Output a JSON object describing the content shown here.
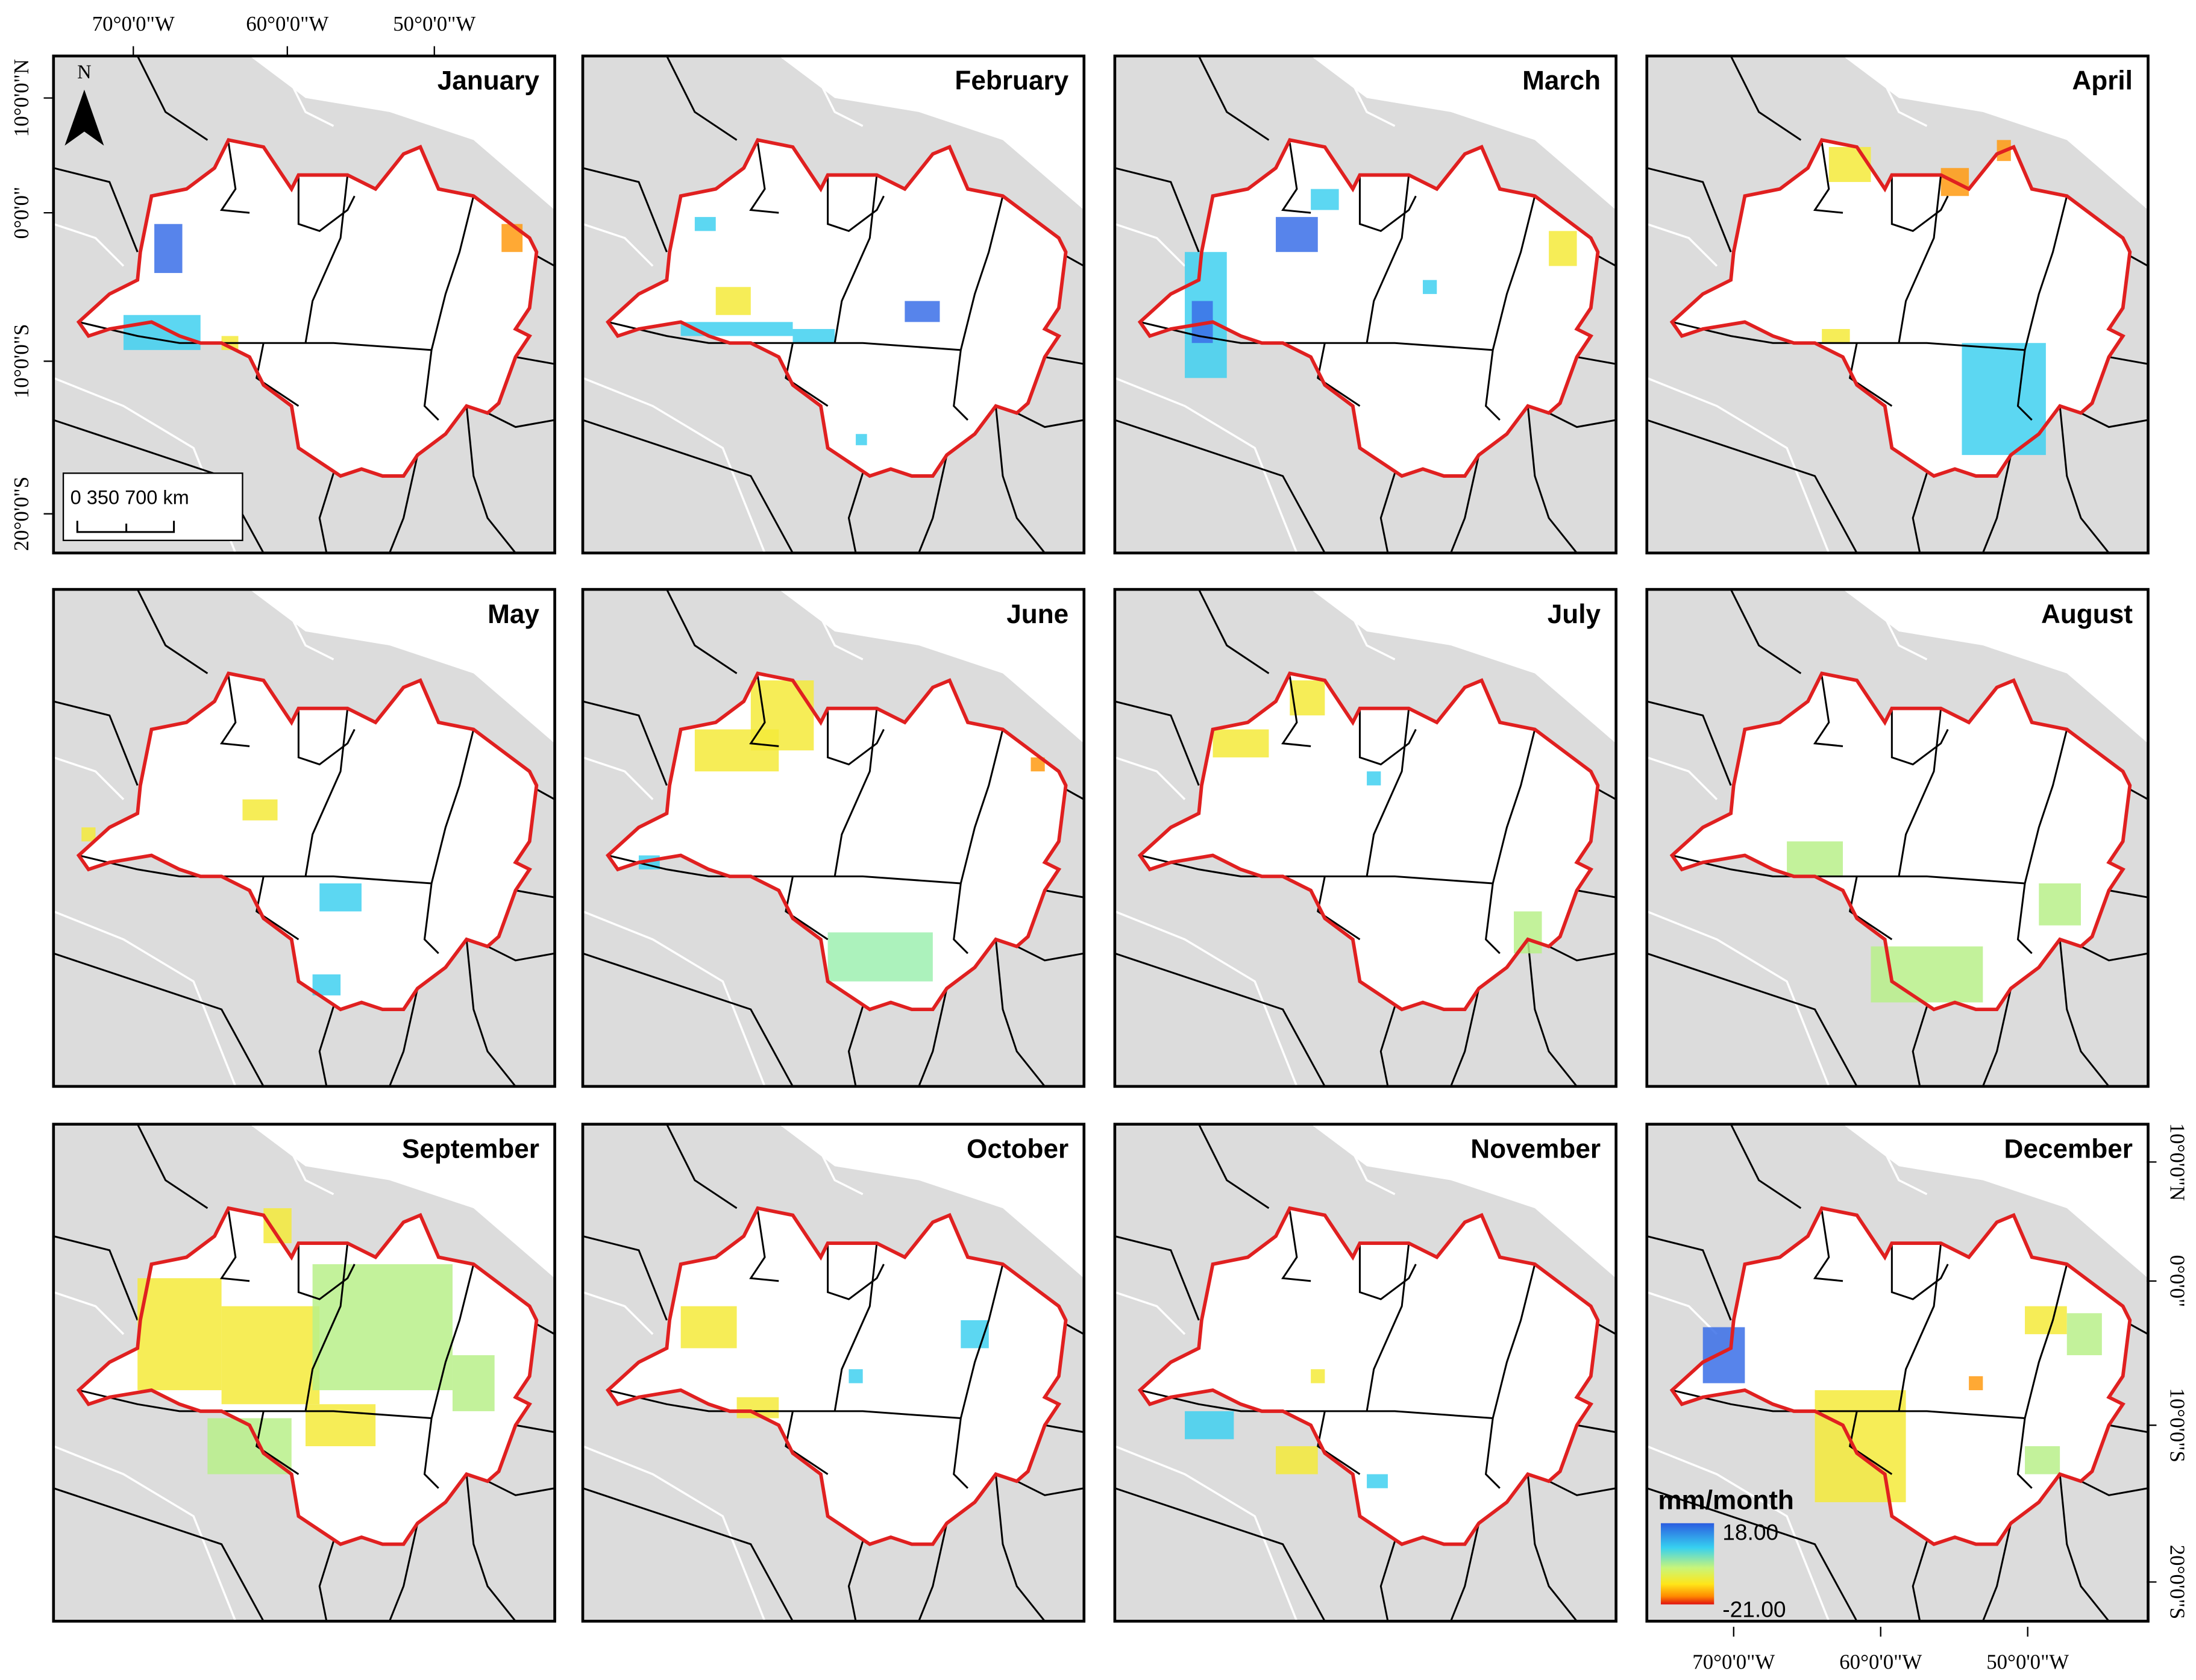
{
  "panels": [
    {
      "title": "January"
    },
    {
      "title": "February"
    },
    {
      "title": "March"
    },
    {
      "title": "April"
    },
    {
      "title": "May"
    },
    {
      "title": "June"
    },
    {
      "title": "July"
    },
    {
      "title": "August"
    },
    {
      "title": "September"
    },
    {
      "title": "October"
    },
    {
      "title": "November"
    },
    {
      "title": "December"
    }
  ],
  "longitude_labels": {
    "top": [
      "70°0'0\"W",
      "60°0'0\"W",
      "50°0'0\"W"
    ],
    "bottom": [
      "70°0'0\"W",
      "60°0'0\"W",
      "50°0'0\"W"
    ]
  },
  "latitude_labels": {
    "left": [
      "10°0'0\"N",
      "0°0'0\"",
      "10°0'0\"S",
      "20°0'0\"S"
    ],
    "right": [
      "10°0'0\"N",
      "0°0'0\"",
      "10°0'0\"S",
      "20°0'0\"S"
    ]
  },
  "north_arrow": "N",
  "scale_bar": "0   350 700 km",
  "legend": {
    "title": "mm/month",
    "max": "18.00",
    "min": "-21.00"
  }
}
